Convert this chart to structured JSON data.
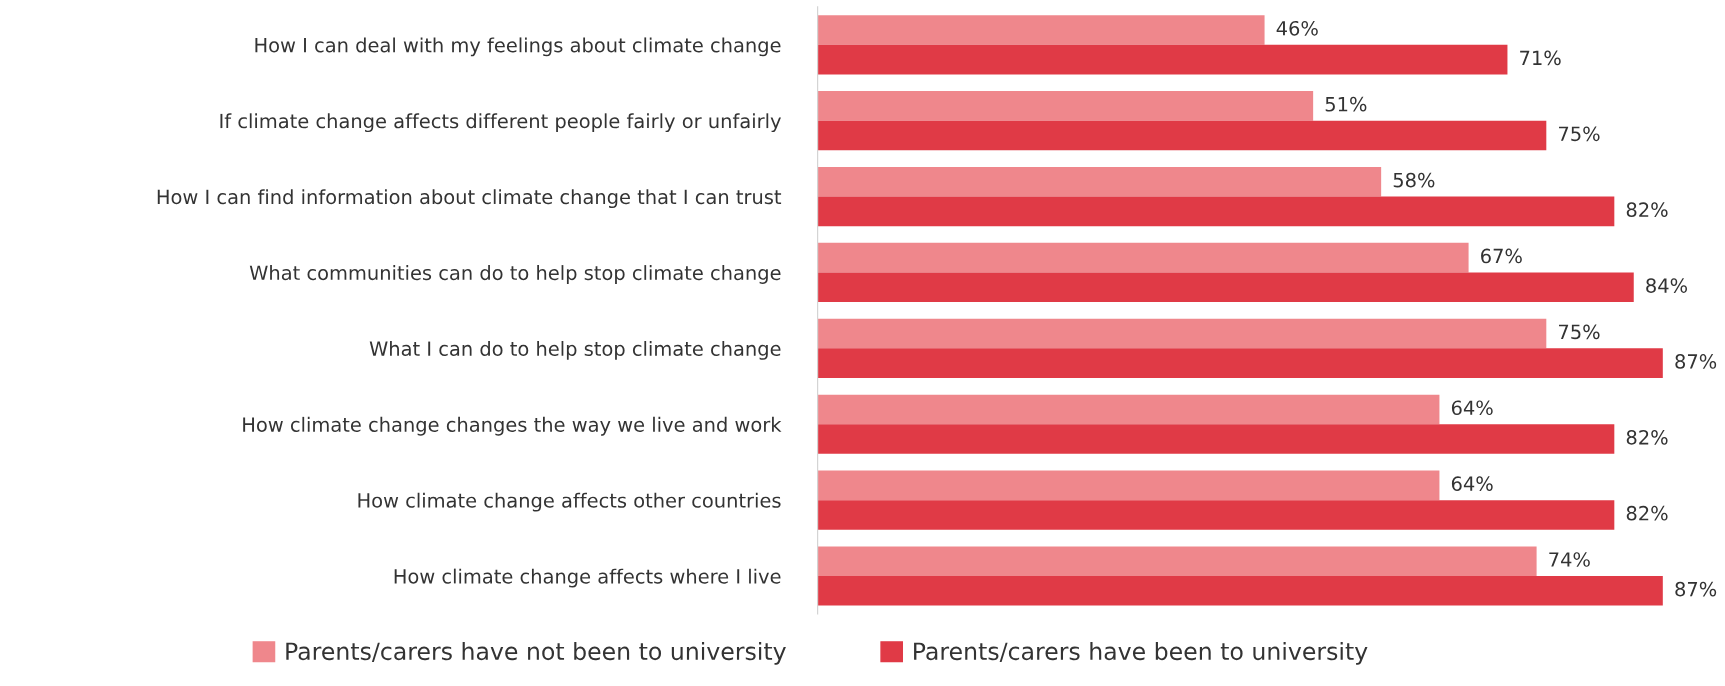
{
  "chart_data": {
    "type": "bar",
    "orientation": "horizontal",
    "categories": [
      "How I can deal with my feelings about climate change",
      "If climate change affects different people fairly or unfairly",
      "How I can find information about climate change that I can trust",
      "What communities can do to help stop climate change",
      "What I can do to help stop climate change",
      "How climate change changes the way we live and work",
      "How climate change affects other countries",
      "How climate change affects where I live"
    ],
    "series": [
      {
        "name": "Parents/carers have not been to university",
        "color": "#ef878c",
        "values": [
          46,
          51,
          58,
          67,
          75,
          64,
          64,
          74
        ],
        "value_labels": [
          "46%",
          "51%",
          "58%",
          "67%",
          "75%",
          "64%",
          "64%",
          "74%"
        ]
      },
      {
        "name": "Parents/carers have been to university",
        "color": "#e03a46",
        "values": [
          71,
          75,
          82,
          84,
          87,
          82,
          82,
          87
        ],
        "value_labels": [
          "71%",
          "75%",
          "82%",
          "84%",
          "87%",
          "82%",
          "82%",
          "87%"
        ]
      }
    ],
    "legend": "bottom",
    "grid": false
  }
}
